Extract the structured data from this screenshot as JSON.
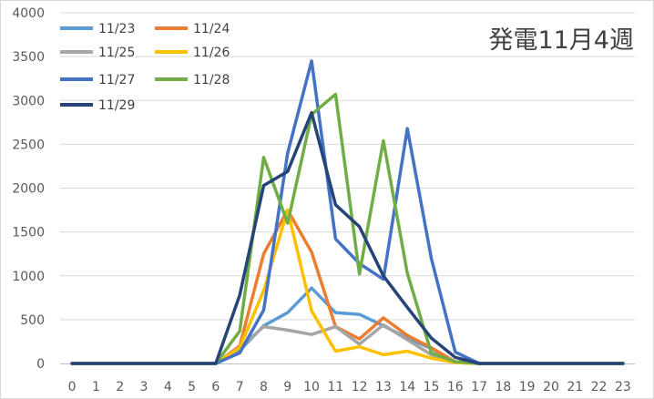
{
  "chart_data": {
    "type": "line",
    "title": "発電11月4週",
    "xlabel": "",
    "ylabel": "",
    "x": [
      0,
      1,
      2,
      3,
      4,
      5,
      6,
      7,
      8,
      9,
      10,
      11,
      12,
      13,
      14,
      15,
      16,
      17,
      18,
      19,
      20,
      21,
      22,
      23
    ],
    "ylim": [
      0,
      4000
    ],
    "yticks": [
      0,
      500,
      1000,
      1500,
      2000,
      2500,
      3000,
      3500,
      4000
    ],
    "grid": true,
    "legend_position": "top-left",
    "series": [
      {
        "name": "11/23",
        "color": "#5B9BD5",
        "values": [
          0,
          0,
          0,
          0,
          0,
          0,
          0,
          150,
          430,
          580,
          860,
          580,
          560,
          430,
          290,
          170,
          20,
          0,
          0,
          0,
          0,
          0,
          0,
          0
        ]
      },
      {
        "name": "11/24",
        "color": "#ED7D31",
        "values": [
          0,
          0,
          0,
          0,
          0,
          0,
          0,
          200,
          1250,
          1750,
          1270,
          420,
          280,
          520,
          320,
          180,
          20,
          0,
          0,
          0,
          0,
          0,
          0,
          0
        ]
      },
      {
        "name": "11/25",
        "color": "#A5A5A5",
        "values": [
          0,
          0,
          0,
          0,
          0,
          0,
          0,
          180,
          420,
          380,
          330,
          420,
          220,
          440,
          270,
          100,
          10,
          0,
          0,
          0,
          0,
          0,
          0,
          0
        ]
      },
      {
        "name": "11/26",
        "color": "#FFC000",
        "values": [
          0,
          0,
          0,
          0,
          0,
          0,
          0,
          180,
          830,
          1750,
          600,
          140,
          190,
          100,
          140,
          60,
          10,
          0,
          0,
          0,
          0,
          0,
          0,
          0
        ]
      },
      {
        "name": "11/27",
        "color": "#4472C4",
        "values": [
          0,
          0,
          0,
          0,
          0,
          0,
          0,
          120,
          610,
          2400,
          3450,
          1420,
          1140,
          960,
          2680,
          1200,
          130,
          0,
          0,
          0,
          0,
          0,
          0,
          0
        ]
      },
      {
        "name": "11/28",
        "color": "#70AD47",
        "values": [
          0,
          0,
          0,
          0,
          0,
          0,
          0,
          370,
          2350,
          1600,
          2840,
          3070,
          1020,
          2540,
          1030,
          120,
          20,
          0,
          0,
          0,
          0,
          0,
          0,
          0
        ]
      },
      {
        "name": "11/29",
        "color": "#264478",
        "values": [
          0,
          0,
          0,
          0,
          0,
          0,
          0,
          780,
          2030,
          2190,
          2860,
          1810,
          1560,
          1000,
          640,
          290,
          70,
          0,
          0,
          0,
          0,
          0,
          0,
          0
        ]
      }
    ]
  }
}
